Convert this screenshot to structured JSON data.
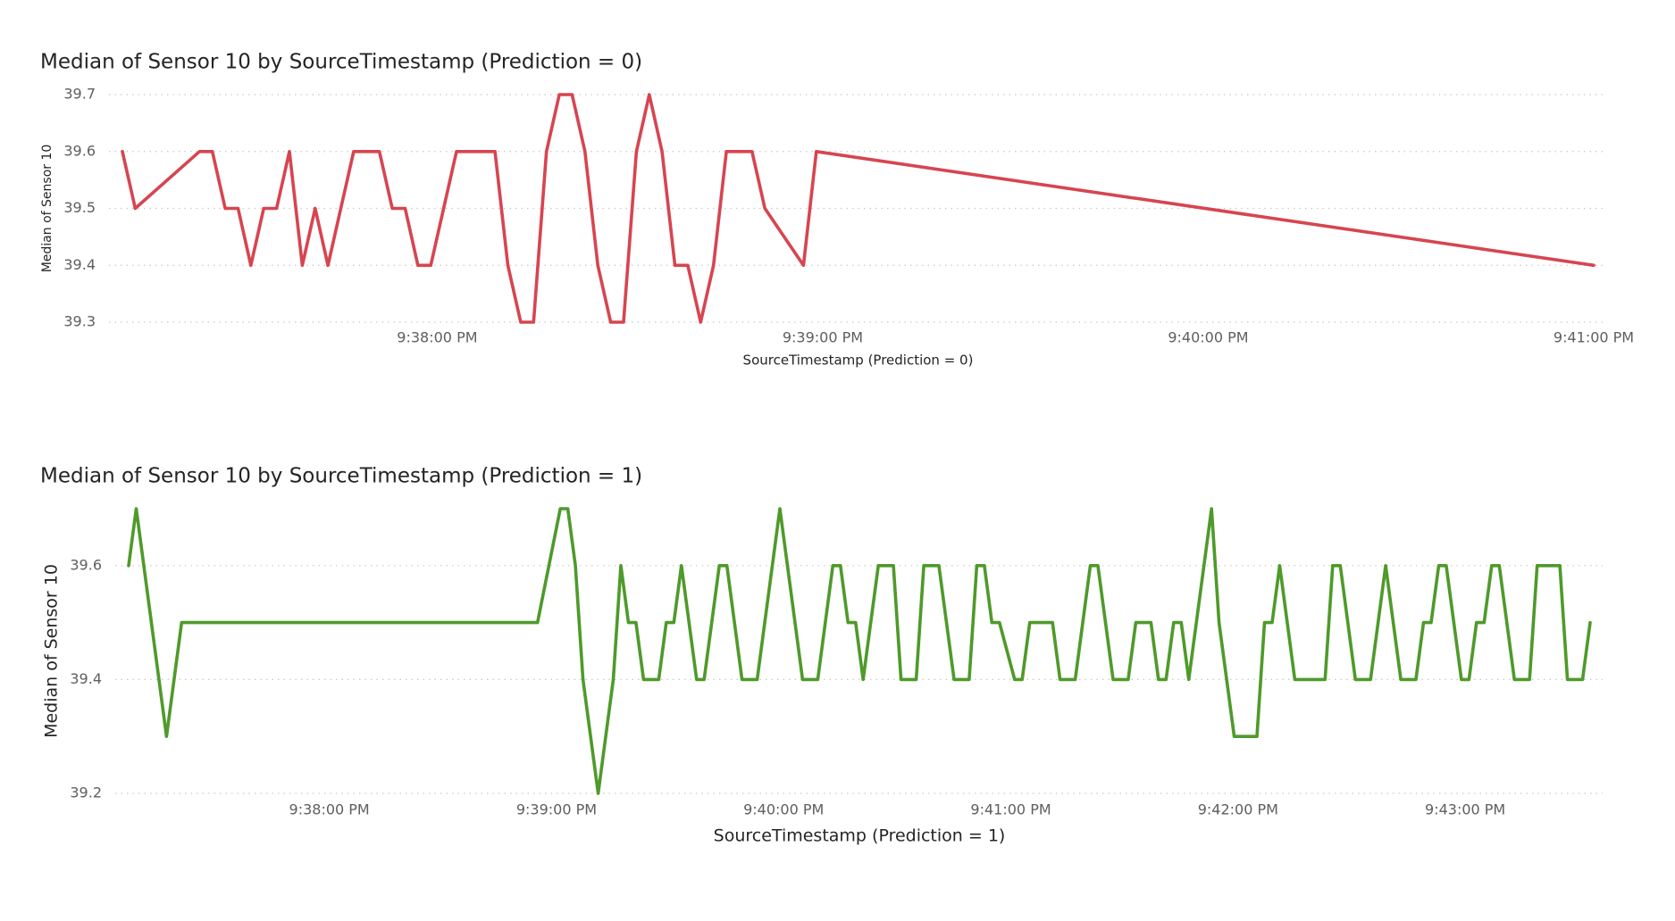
{
  "chart_data": [
    {
      "type": "line",
      "title": "Median of Sensor 10 by SourceTimestamp (Prediction = 0)",
      "x_label": "SourceTimestamp (Prediction = 0)",
      "y_label": "Median of Sensor 10",
      "xlim": [
        "9:37:11 PM",
        "9:41:00 PM"
      ],
      "xticks": [
        "9:38:00 PM",
        "9:39:00 PM",
        "9:40:00 PM",
        "9:41:00 PM"
      ],
      "ylim": [
        39.3,
        39.7
      ],
      "yticks": [
        39.3,
        39.4,
        39.5,
        39.6,
        39.7
      ],
      "grid": true,
      "x": [
        "9:37:11 PM",
        "9:37:13 PM",
        "9:37:23 PM",
        "9:37:25 PM",
        "9:37:27 PM",
        "9:37:29 PM",
        "9:37:31 PM",
        "9:37:33 PM",
        "9:37:35 PM",
        "9:37:37 PM",
        "9:37:39 PM",
        "9:37:41 PM",
        "9:37:43 PM",
        "9:37:47 PM",
        "9:37:51 PM",
        "9:37:53 PM",
        "9:37:55 PM",
        "9:37:57 PM",
        "9:37:59 PM",
        "9:38:03 PM",
        "9:38:09 PM",
        "9:38:11 PM",
        "9:38:13 PM",
        "9:38:15 PM",
        "9:38:17 PM",
        "9:38:19 PM",
        "9:38:21 PM",
        "9:38:23 PM",
        "9:38:25 PM",
        "9:38:27 PM",
        "9:38:29 PM",
        "9:38:31 PM",
        "9:38:33 PM",
        "9:38:35 PM",
        "9:38:37 PM",
        "9:38:39 PM",
        "9:38:41 PM",
        "9:38:43 PM",
        "9:38:45 PM",
        "9:38:49 PM",
        "9:38:51 PM",
        "9:38:57 PM",
        "9:38:59 PM",
        "9:41:00 PM"
      ],
      "series": [
        {
          "color": "#d64550",
          "values": [
            39.6,
            39.5,
            39.6,
            39.6,
            39.5,
            39.5,
            39.4,
            39.5,
            39.5,
            39.6,
            39.4,
            39.5,
            39.4,
            39.6,
            39.6,
            39.5,
            39.5,
            39.4,
            39.4,
            39.6,
            39.6,
            39.4,
            39.3,
            39.3,
            39.6,
            39.7,
            39.7,
            39.6,
            39.4,
            39.3,
            39.3,
            39.6,
            39.7,
            39.6,
            39.4,
            39.4,
            39.3,
            39.4,
            39.6,
            39.6,
            39.5,
            39.4,
            39.6,
            39.4
          ]
        }
      ]
    },
    {
      "type": "line",
      "title": "Median of Sensor 10 by SourceTimestamp (Prediction = 1)",
      "x_label": "SourceTimestamp (Prediction = 1)",
      "y_label": "Median of Sensor 10",
      "xlim": [
        "9:37:07 PM",
        "9:43:33 PM"
      ],
      "xticks": [
        "9:38:00 PM",
        "9:39:00 PM",
        "9:40:00 PM",
        "9:41:00 PM",
        "9:42:00 PM",
        "9:43:00 PM"
      ],
      "ylim": [
        39.2,
        39.7
      ],
      "yticks": [
        39.2,
        39.4,
        39.6
      ],
      "grid": true,
      "x": [
        "9:37:07 PM",
        "9:37:09 PM",
        "9:37:17 PM",
        "9:37:21 PM",
        "9:38:55 PM",
        "9:39:01 PM",
        "9:39:03 PM",
        "9:39:05 PM",
        "9:39:07 PM",
        "9:39:11 PM",
        "9:39:15 PM",
        "9:39:17 PM",
        "9:39:19 PM",
        "9:39:21 PM",
        "9:39:23 PM",
        "9:39:27 PM",
        "9:39:29 PM",
        "9:39:31 PM",
        "9:39:33 PM",
        "9:39:37 PM",
        "9:39:39 PM",
        "9:39:43 PM",
        "9:39:45 PM",
        "9:39:49 PM",
        "9:39:53 PM",
        "9:39:59 PM",
        "9:40:05 PM",
        "9:40:09 PM",
        "9:40:13 PM",
        "9:40:15 PM",
        "9:40:17 PM",
        "9:40:19 PM",
        "9:40:21 PM",
        "9:40:25 PM",
        "9:40:29 PM",
        "9:40:31 PM",
        "9:40:35 PM",
        "9:40:37 PM",
        "9:40:41 PM",
        "9:40:45 PM",
        "9:40:49 PM",
        "9:40:51 PM",
        "9:40:53 PM",
        "9:40:55 PM",
        "9:40:57 PM",
        "9:41:01 PM",
        "9:41:03 PM",
        "9:41:05 PM",
        "9:41:11 PM",
        "9:41:13 PM",
        "9:41:17 PM",
        "9:41:21 PM",
        "9:41:23 PM",
        "9:41:27 PM",
        "9:41:31 PM",
        "9:41:33 PM",
        "9:41:37 PM",
        "9:41:39 PM",
        "9:41:41 PM",
        "9:41:43 PM",
        "9:41:45 PM",
        "9:41:47 PM",
        "9:41:53 PM",
        "9:41:55 PM",
        "9:41:59 PM",
        "9:42:05 PM",
        "9:42:07 PM",
        "9:42:09 PM",
        "9:42:11 PM",
        "9:42:15 PM",
        "9:42:23 PM",
        "9:42:25 PM",
        "9:42:27 PM",
        "9:42:31 PM",
        "9:42:35 PM",
        "9:42:39 PM",
        "9:42:43 PM",
        "9:42:47 PM",
        "9:42:49 PM",
        "9:42:51 PM",
        "9:42:53 PM",
        "9:42:55 PM",
        "9:42:59 PM",
        "9:43:01 PM",
        "9:43:03 PM",
        "9:43:05 PM",
        "9:43:07 PM",
        "9:43:09 PM",
        "9:43:13 PM",
        "9:43:17 PM",
        "9:43:19 PM",
        "9:43:25 PM",
        "9:43:27 PM",
        "9:43:31 PM",
        "9:43:33 PM"
      ],
      "series": [
        {
          "color": "#4e9a2a",
          "values": [
            39.6,
            39.7,
            39.3,
            39.5,
            39.5,
            39.7,
            39.7,
            39.6,
            39.4,
            39.2,
            39.4,
            39.6,
            39.5,
            39.5,
            39.4,
            39.4,
            39.5,
            39.5,
            39.6,
            39.4,
            39.4,
            39.6,
            39.6,
            39.4,
            39.4,
            39.7,
            39.4,
            39.4,
            39.6,
            39.6,
            39.5,
            39.5,
            39.4,
            39.6,
            39.6,
            39.4,
            39.4,
            39.6,
            39.6,
            39.4,
            39.4,
            39.6,
            39.6,
            39.5,
            39.5,
            39.4,
            39.4,
            39.5,
            39.5,
            39.4,
            39.4,
            39.6,
            39.6,
            39.4,
            39.4,
            39.5,
            39.5,
            39.4,
            39.4,
            39.5,
            39.5,
            39.4,
            39.7,
            39.5,
            39.3,
            39.3,
            39.5,
            39.5,
            39.6,
            39.4,
            39.4,
            39.6,
            39.6,
            39.4,
            39.4,
            39.6,
            39.4,
            39.4,
            39.5,
            39.5,
            39.6,
            39.6,
            39.4,
            39.4,
            39.5,
            39.5,
            39.6,
            39.6,
            39.4,
            39.4,
            39.6,
            39.6,
            39.4,
            39.4,
            39.5
          ]
        }
      ]
    }
  ]
}
